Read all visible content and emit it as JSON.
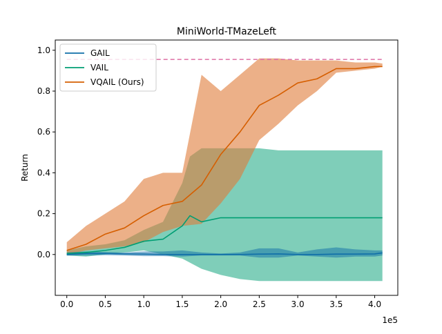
{
  "chart_data": {
    "type": "line",
    "title": "MiniWorld-TMazeLeft",
    "xlabel": "",
    "ylabel": "Return",
    "x_offset_label": "1e5",
    "xlim": [
      -0.15,
      4.3
    ],
    "ylim": [
      -0.2,
      1.05
    ],
    "x_ticks": [
      0.0,
      0.5,
      1.0,
      1.5,
      2.0,
      2.5,
      3.0,
      3.5,
      4.0
    ],
    "x_tick_labels": [
      "0.0",
      "0.5",
      "1.0",
      "1.5",
      "2.0",
      "2.5",
      "3.0",
      "3.5",
      "4.0"
    ],
    "y_ticks": [
      0.0,
      0.2,
      0.4,
      0.6,
      0.8,
      1.0
    ],
    "y_tick_labels": [
      "0.0",
      "0.2",
      "0.4",
      "0.6",
      "0.8",
      "1.0"
    ],
    "grid": false,
    "legend_position": "top-left",
    "reference_line": {
      "y": 0.955,
      "x_range": [
        0.0,
        4.1
      ],
      "style": "dashed",
      "color": "#dd6fa4"
    },
    "series": [
      {
        "name": "GAIL",
        "color": "#0f6ea8",
        "fill_color": "#0f6ea8",
        "x": [
          0.0,
          0.25,
          0.5,
          0.75,
          1.0,
          1.25,
          1.5,
          1.75,
          2.0,
          2.25,
          2.5,
          2.75,
          3.0,
          3.25,
          3.5,
          3.75,
          4.0,
          4.1
        ],
        "mean": [
          0.0,
          0.005,
          0.005,
          0.003,
          0.002,
          0.0,
          0.0,
          0.0,
          0.0,
          0.0,
          0.002,
          0.003,
          0.0,
          0.0,
          0.002,
          0.002,
          0.003,
          0.008
        ],
        "lower": [
          -0.005,
          -0.005,
          -0.003,
          -0.005,
          -0.008,
          -0.008,
          -0.01,
          -0.005,
          -0.005,
          -0.005,
          -0.015,
          -0.015,
          -0.005,
          -0.01,
          -0.015,
          -0.01,
          -0.01,
          -0.005
        ],
        "upper": [
          0.01,
          0.015,
          0.012,
          0.01,
          0.015,
          0.015,
          0.02,
          0.01,
          0.005,
          0.01,
          0.03,
          0.03,
          0.01,
          0.025,
          0.035,
          0.025,
          0.02,
          0.02
        ]
      },
      {
        "name": "VAIL",
        "color": "#009e73",
        "fill_color": "#009e73",
        "x": [
          0.0,
          0.25,
          0.5,
          0.75,
          1.0,
          1.25,
          1.5,
          1.6,
          1.75,
          2.0,
          2.25,
          2.5,
          2.75,
          3.0,
          3.25,
          3.5,
          3.75,
          4.0,
          4.1
        ],
        "mean": [
          0.005,
          0.01,
          0.02,
          0.035,
          0.065,
          0.075,
          0.14,
          0.19,
          0.16,
          0.18,
          0.18,
          0.18,
          0.18,
          0.18,
          0.18,
          0.18,
          0.18,
          0.18,
          0.18
        ],
        "lower": [
          -0.005,
          -0.01,
          0.0,
          0.01,
          0.02,
          0.0,
          -0.02,
          -0.04,
          -0.07,
          -0.1,
          -0.12,
          -0.13,
          -0.13,
          -0.13,
          -0.13,
          -0.13,
          -0.13,
          -0.13,
          -0.13
        ],
        "upper": [
          0.02,
          0.04,
          0.05,
          0.07,
          0.12,
          0.16,
          0.35,
          0.48,
          0.52,
          0.52,
          0.52,
          0.52,
          0.51,
          0.51,
          0.51,
          0.51,
          0.51,
          0.51,
          0.51
        ]
      },
      {
        "name": "VQAIL (Ours)",
        "color": "#d55e00",
        "fill_color": "#e07b39",
        "x": [
          0.0,
          0.25,
          0.5,
          0.75,
          1.0,
          1.25,
          1.5,
          1.75,
          2.0,
          2.25,
          2.5,
          2.75,
          3.0,
          3.25,
          3.5,
          3.75,
          4.0,
          4.1
        ],
        "mean": [
          0.02,
          0.05,
          0.1,
          0.13,
          0.19,
          0.24,
          0.26,
          0.34,
          0.49,
          0.6,
          0.73,
          0.78,
          0.84,
          0.86,
          0.91,
          0.91,
          0.92,
          0.92
        ],
        "lower": [
          0.0,
          0.02,
          0.03,
          0.04,
          0.06,
          0.11,
          0.14,
          0.15,
          0.25,
          0.37,
          0.56,
          0.64,
          0.73,
          0.8,
          0.89,
          0.9,
          0.91,
          0.92
        ],
        "upper": [
          0.06,
          0.14,
          0.2,
          0.26,
          0.37,
          0.4,
          0.4,
          0.88,
          0.8,
          0.88,
          0.96,
          0.96,
          0.95,
          0.95,
          0.95,
          0.94,
          0.94,
          0.935
        ]
      }
    ]
  }
}
